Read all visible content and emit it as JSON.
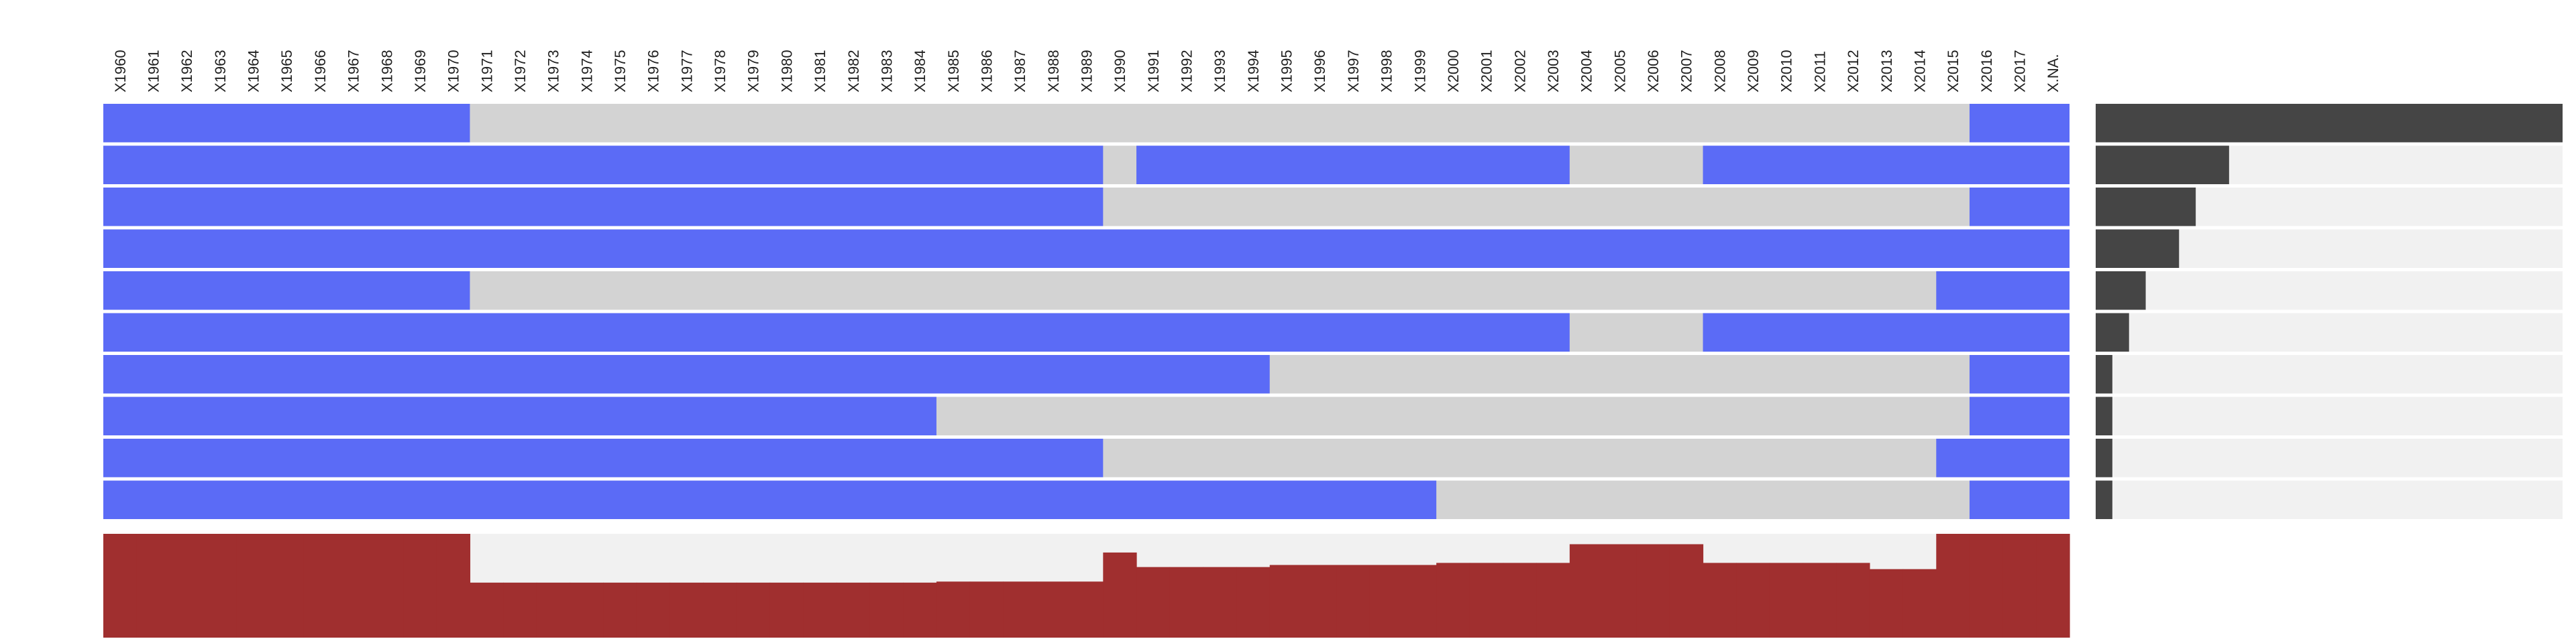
{
  "chart_data": {
    "type": "heatmap",
    "title": "",
    "columns": [
      "X1960",
      "X1961",
      "X1962",
      "X1963",
      "X1964",
      "X1965",
      "X1966",
      "X1967",
      "X1968",
      "X1969",
      "X1970",
      "X1971",
      "X1972",
      "X1973",
      "X1974",
      "X1975",
      "X1976",
      "X1977",
      "X1978",
      "X1979",
      "X1980",
      "X1981",
      "X1982",
      "X1983",
      "X1984",
      "X1985",
      "X1986",
      "X1987",
      "X1988",
      "X1989",
      "X1990",
      "X1991",
      "X1992",
      "X1993",
      "X1994",
      "X1995",
      "X1996",
      "X1997",
      "X1998",
      "X1999",
      "X2000",
      "X2001",
      "X2002",
      "X2003",
      "X2004",
      "X2005",
      "X2006",
      "X2007",
      "X2008",
      "X2009",
      "X2010",
      "X2011",
      "X2012",
      "X2013",
      "X2014",
      "X2015",
      "X2016",
      "X2017",
      "X.NA."
    ],
    "missing_segments": [
      [
        [
          11,
          55
        ]
      ],
      [
        [
          30,
          30
        ],
        [
          44,
          47
        ]
      ],
      [
        [
          30,
          55
        ]
      ],
      [],
      [
        [
          11,
          54
        ]
      ],
      [
        [
          44,
          47
        ]
      ],
      [
        [
          35,
          55
        ]
      ],
      [
        [
          25,
          55
        ]
      ],
      [
        [
          30,
          54
        ]
      ],
      [
        [
          40,
          55
        ]
      ]
    ],
    "row_counts": [
      14,
      4,
      3,
      2.5,
      1.5,
      1,
      0.5,
      0.5,
      0.5,
      0.5
    ],
    "row_count_max": 14,
    "column_present_fraction": [
      1,
      1,
      1,
      1,
      1,
      1,
      1,
      1,
      1,
      1,
      1,
      0.53,
      0.53,
      0.53,
      0.53,
      0.53,
      0.53,
      0.53,
      0.53,
      0.53,
      0.53,
      0.53,
      0.53,
      0.53,
      0.53,
      0.54,
      0.54,
      0.54,
      0.54,
      0.54,
      0.82,
      0.68,
      0.68,
      0.68,
      0.68,
      0.7,
      0.7,
      0.7,
      0.7,
      0.7,
      0.72,
      0.72,
      0.72,
      0.72,
      0.9,
      0.9,
      0.9,
      0.9,
      0.72,
      0.72,
      0.72,
      0.72,
      0.72,
      0.66,
      0.66,
      1,
      1,
      1,
      1
    ],
    "colors": {
      "present": "#5b6bf6",
      "missing": "#d3d3d3",
      "count_bar": "#454545",
      "count_background": "#f1f1f1",
      "column_bar": "#a02f2f",
      "column_background": "#f1f1f1"
    }
  }
}
